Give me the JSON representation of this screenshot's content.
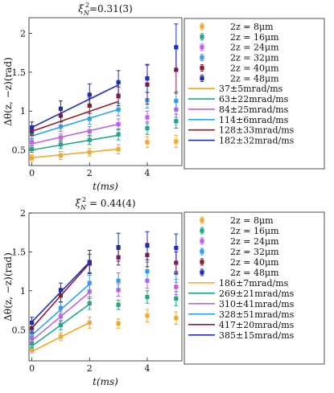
{
  "chart_data": [
    {
      "type": "scatter",
      "title": "ξ²_N =0.31(3)",
      "title_parts": {
        "xi": "ξ",
        "sub": "N",
        "sup": "2",
        "value": "=0.31(3)"
      },
      "xlabel": "t(ms)",
      "ylabel": "Δθ(z, −z)(rad)",
      "xlim": [
        -0.1,
        5.2
      ],
      "ylim": [
        0.3,
        2.2
      ],
      "xticks": [
        0,
        2,
        4
      ],
      "yticks": [
        0.5,
        1,
        1.5,
        2
      ],
      "ytick_labels": [
        "0.5",
        "1",
        "1.5",
        "2"
      ],
      "legend_position": "right",
      "series": [
        {
          "name": "2z = 8μm",
          "color": "#f0a830",
          "x": [
            0,
            1,
            2,
            3,
            4,
            5
          ],
          "y": [
            0.4,
            0.43,
            0.47,
            0.51,
            0.6,
            0.61
          ],
          "err": [
            0.04,
            0.05,
            0.05,
            0.06,
            0.07,
            0.08
          ]
        },
        {
          "name": "2z = 16μm",
          "color": "#1aa98a",
          "x": [
            0,
            1,
            2,
            3,
            4,
            5
          ],
          "y": [
            0.51,
            0.57,
            0.63,
            0.7,
            0.78,
            0.87
          ],
          "err": [
            0.04,
            0.05,
            0.06,
            0.07,
            0.08,
            0.09
          ]
        },
        {
          "name": "2z = 24μm",
          "color": "#c05ee8",
          "x": [
            0,
            1,
            2,
            3,
            4,
            5
          ],
          "y": [
            0.6,
            0.66,
            0.74,
            0.83,
            0.92,
            1.02
          ],
          "err": [
            0.04,
            0.05,
            0.06,
            0.07,
            0.08,
            0.1
          ]
        },
        {
          "name": "2z = 32μm",
          "color": "#2aa3ee",
          "x": [
            0,
            1,
            2,
            3,
            4,
            5
          ],
          "y": [
            0.7,
            0.8,
            0.9,
            1.02,
            1.14,
            1.13
          ],
          "err": [
            0.05,
            0.06,
            0.07,
            0.08,
            0.1,
            0.12
          ]
        },
        {
          "name": "2z = 40μm",
          "color": "#8e1b2e",
          "x": [
            0,
            1,
            2,
            3,
            4,
            5
          ],
          "y": [
            0.75,
            0.94,
            1.07,
            1.19,
            1.34,
            1.53
          ],
          "err": [
            0.06,
            0.08,
            0.1,
            0.12,
            0.25,
            0.3
          ]
        },
        {
          "name": "2z = 48μm",
          "color": "#1c2fb8",
          "x": [
            0,
            1,
            2,
            3,
            4,
            5
          ],
          "y": [
            0.79,
            1.03,
            1.21,
            1.37,
            1.42,
            1.82
          ],
          "err": [
            0.07,
            0.1,
            0.14,
            0.15,
            0.18,
            0.3
          ]
        }
      ],
      "fits": [
        {
          "name": "37±5mrad/ms",
          "color": "#f0a830",
          "intercept": 0.4,
          "slope": 0.037,
          "x_range": [
            0,
            3
          ]
        },
        {
          "name": "63±22mrad/ms",
          "color": "#1aa98a",
          "intercept": 0.5,
          "slope": 0.063,
          "x_range": [
            0,
            3
          ]
        },
        {
          "name": "84±25mrad/ms",
          "color": "#c05ee8",
          "intercept": 0.58,
          "slope": 0.084,
          "x_range": [
            0,
            3
          ]
        },
        {
          "name": "114±6mrad/ms",
          "color": "#2aa3ee",
          "intercept": 0.68,
          "slope": 0.114,
          "x_range": [
            0,
            3
          ]
        },
        {
          "name": "128±33mrad/ms",
          "color": "#8e1b2e",
          "intercept": 0.74,
          "slope": 0.128,
          "x_range": [
            0,
            3
          ]
        },
        {
          "name": "182±32mrad/ms",
          "color": "#1c2fb8",
          "intercept": 0.79,
          "slope": 0.182,
          "x_range": [
            0,
            3
          ]
        }
      ]
    },
    {
      "type": "scatter",
      "title": "ξ²_N = 0.44(4)",
      "title_parts": {
        "xi": "ξ",
        "sub": "N",
        "sup": "2",
        "value": " = 0.44(4)"
      },
      "xlabel": "t(ms)",
      "ylabel": "Δθ(z, −z)(rad)",
      "xlim": [
        -0.1,
        5.2
      ],
      "ylim": [
        0.1,
        2.0
      ],
      "xticks": [
        0,
        2,
        4
      ],
      "yticks": [
        0.5,
        1,
        1.5,
        2
      ],
      "ytick_labels": [
        "0.5",
        "1",
        "1.5",
        "2"
      ],
      "legend_position": "right",
      "series": [
        {
          "name": "2z = 8μm",
          "color": "#f0a830",
          "x": [
            0,
            1,
            2,
            3,
            4,
            5
          ],
          "y": [
            0.24,
            0.41,
            0.59,
            0.58,
            0.68,
            0.65
          ],
          "err": [
            0.04,
            0.05,
            0.07,
            0.06,
            0.08,
            0.08
          ]
        },
        {
          "name": "2z = 16μm",
          "color": "#1aa98a",
          "x": [
            0,
            1,
            2,
            3,
            4,
            5
          ],
          "y": [
            0.32,
            0.56,
            0.84,
            0.82,
            0.92,
            0.9
          ],
          "err": [
            0.05,
            0.06,
            0.08,
            0.06,
            0.08,
            0.09
          ]
        },
        {
          "name": "2z = 24μm",
          "color": "#c05ee8",
          "x": [
            0,
            1,
            2,
            3,
            4,
            5
          ],
          "y": [
            0.4,
            0.67,
            0.99,
            1.01,
            1.13,
            1.05
          ],
          "err": [
            0.05,
            0.07,
            0.09,
            0.08,
            0.1,
            0.1
          ]
        },
        {
          "name": "2z = 32μm",
          "color": "#2aa3ee",
          "x": [
            0,
            1,
            2,
            3,
            4,
            5
          ],
          "y": [
            0.46,
            0.78,
            1.1,
            1.13,
            1.25,
            1.23
          ],
          "err": [
            0.05,
            0.07,
            0.1,
            0.1,
            0.12,
            0.12
          ]
        },
        {
          "name": "2z = 40μm",
          "color": "#8e1b2e",
          "x": [
            0,
            1,
            2,
            3,
            4,
            5
          ],
          "y": [
            0.52,
            0.94,
            1.35,
            1.43,
            1.46,
            1.36
          ],
          "err": [
            0.06,
            0.08,
            0.12,
            0.1,
            0.15,
            0.14
          ]
        },
        {
          "name": "2z = 48μm",
          "color": "#1c2fb8",
          "x": [
            0,
            1,
            2,
            3,
            4,
            5
          ],
          "y": [
            0.59,
            1.01,
            1.37,
            1.56,
            1.58,
            1.55
          ],
          "err": [
            0.07,
            0.09,
            0.15,
            0.18,
            0.18,
            0.18
          ]
        }
      ],
      "fits": [
        {
          "name": "186±7mrad/ms",
          "color": "#f0a830",
          "intercept": 0.22,
          "slope": 0.186,
          "x_range": [
            0,
            2
          ]
        },
        {
          "name": "269±21mrad/ms",
          "color": "#1aa98a",
          "intercept": 0.29,
          "slope": 0.269,
          "x_range": [
            0,
            2
          ]
        },
        {
          "name": "310±41mrad/ms",
          "color": "#c05ee8",
          "intercept": 0.36,
          "slope": 0.31,
          "x_range": [
            0,
            2
          ]
        },
        {
          "name": "328±51mrad/ms",
          "color": "#2aa3ee",
          "intercept": 0.43,
          "slope": 0.328,
          "x_range": [
            0,
            2
          ]
        },
        {
          "name": "417±20mrad/ms",
          "color": "#8e1b2e",
          "intercept": 0.52,
          "slope": 0.417,
          "x_range": [
            0,
            2
          ]
        },
        {
          "name": "385±15mrad/ms",
          "color": "#1c2fb8",
          "intercept": 0.6,
          "slope": 0.385,
          "x_range": [
            0,
            2
          ]
        }
      ]
    }
  ]
}
